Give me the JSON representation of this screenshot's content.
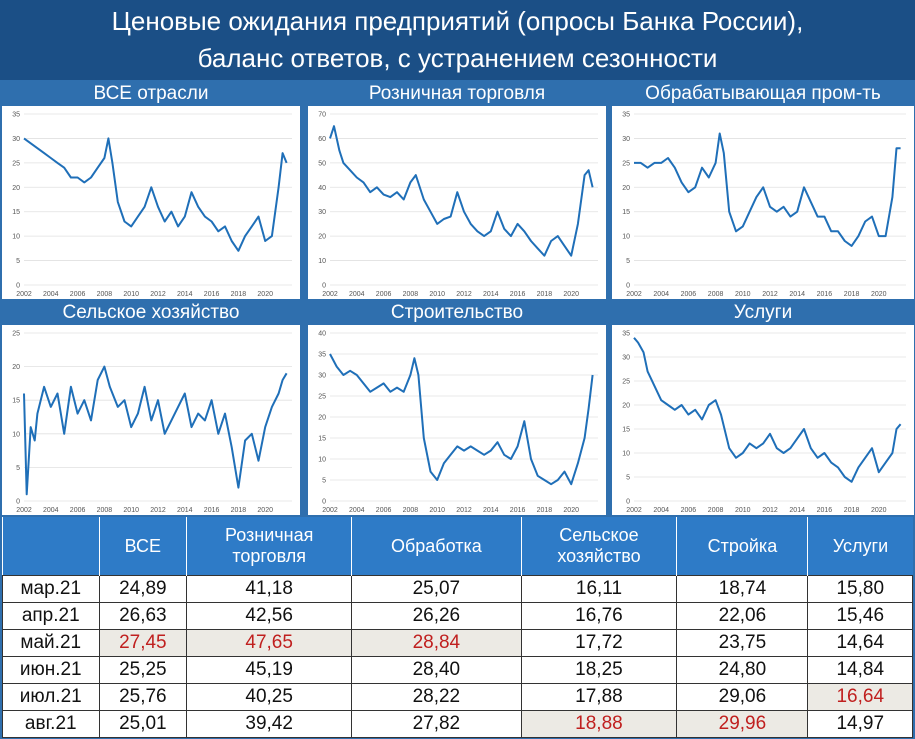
{
  "header": {
    "title_line1": "Ценовые ожидания предприятий (опросы Банка России),",
    "title_line2": "баланс ответов, с устранением сезонности"
  },
  "colors": {
    "line": "#1f6fb8",
    "highlight_text": "#c0201f",
    "highlight_bg": "#eceae4",
    "header_bg": "#2e7bc7"
  },
  "chart_data": [
    {
      "type": "line",
      "title": "ВСЕ отрасли",
      "ylim": [
        0,
        35
      ],
      "yticks": [
        0,
        5,
        10,
        15,
        20,
        25,
        30,
        35
      ],
      "xlim": [
        2002,
        2022
      ],
      "xticks": [
        2002,
        2004,
        2006,
        2008,
        2010,
        2012,
        2014,
        2016,
        2018,
        2020
      ],
      "x": [
        2002,
        2002.5,
        2003,
        2003.5,
        2004,
        2004.5,
        2005,
        2005.5,
        2006,
        2006.5,
        2007,
        2007.5,
        2008,
        2008.3,
        2008.6,
        2009,
        2009.5,
        2010,
        2010.5,
        2011,
        2011.5,
        2012,
        2012.5,
        2013,
        2013.5,
        2014,
        2014.5,
        2015,
        2015.5,
        2016,
        2016.5,
        2017,
        2017.5,
        2018,
        2018.5,
        2019,
        2019.5,
        2020,
        2020.5,
        2021,
        2021.3,
        2021.6
      ],
      "y": [
        30,
        29,
        28,
        27,
        26,
        25,
        24,
        22,
        22,
        21,
        22,
        24,
        26,
        30,
        25,
        17,
        13,
        12,
        14,
        16,
        20,
        16,
        13,
        15,
        12,
        14,
        19,
        16,
        14,
        13,
        11,
        12,
        9,
        7,
        10,
        12,
        14,
        9,
        10,
        20,
        27,
        25
      ]
    },
    {
      "type": "line",
      "title": "Розничная торговля",
      "ylim": [
        0,
        70
      ],
      "yticks": [
        0,
        10,
        20,
        30,
        40,
        50,
        60,
        70
      ],
      "xlim": [
        2002,
        2022
      ],
      "xticks": [
        2002,
        2004,
        2006,
        2008,
        2010,
        2012,
        2014,
        2016,
        2018,
        2020
      ],
      "x": [
        2002,
        2002.3,
        2002.7,
        2003,
        2003.5,
        2004,
        2004.5,
        2005,
        2005.5,
        2006,
        2006.5,
        2007,
        2007.5,
        2008,
        2008.4,
        2009,
        2009.5,
        2010,
        2010.5,
        2011,
        2011.5,
        2012,
        2012.5,
        2013,
        2013.5,
        2014,
        2014.5,
        2015,
        2015.5,
        2016,
        2016.5,
        2017,
        2017.5,
        2018,
        2018.5,
        2019,
        2019.5,
        2020,
        2020.5,
        2021,
        2021.3,
        2021.6
      ],
      "y": [
        60,
        65,
        55,
        50,
        47,
        44,
        42,
        38,
        40,
        37,
        36,
        38,
        35,
        42,
        45,
        35,
        30,
        25,
        27,
        28,
        38,
        30,
        25,
        22,
        20,
        22,
        30,
        23,
        20,
        25,
        22,
        18,
        15,
        12,
        18,
        20,
        16,
        12,
        25,
        45,
        47,
        40
      ]
    },
    {
      "type": "line",
      "title": "Обрабатывающая пром-ть",
      "ylim": [
        0,
        35
      ],
      "yticks": [
        0,
        5,
        10,
        15,
        20,
        25,
        30,
        35
      ],
      "xlim": [
        2002,
        2022
      ],
      "xticks": [
        2002,
        2004,
        2006,
        2008,
        2010,
        2012,
        2014,
        2016,
        2018,
        2020
      ],
      "x": [
        2002,
        2002.5,
        2003,
        2003.5,
        2004,
        2004.5,
        2005,
        2005.5,
        2006,
        2006.5,
        2007,
        2007.5,
        2008,
        2008.3,
        2008.6,
        2009,
        2009.5,
        2010,
        2010.5,
        2011,
        2011.5,
        2012,
        2012.5,
        2013,
        2013.5,
        2014,
        2014.5,
        2015,
        2015.5,
        2016,
        2016.5,
        2017,
        2017.5,
        2018,
        2018.5,
        2019,
        2019.5,
        2020,
        2020.5,
        2021,
        2021.3,
        2021.6
      ],
      "y": [
        25,
        25,
        24,
        25,
        25,
        26,
        24,
        21,
        19,
        20,
        24,
        22,
        25,
        31,
        27,
        15,
        11,
        12,
        15,
        18,
        20,
        16,
        15,
        16,
        14,
        15,
        20,
        17,
        14,
        14,
        11,
        11,
        9,
        8,
        10,
        13,
        14,
        10,
        10,
        18,
        28,
        28
      ]
    },
    {
      "type": "line",
      "title": "Сельское хозяйство",
      "ylim": [
        0,
        25
      ],
      "yticks": [
        0,
        5,
        10,
        15,
        20,
        25
      ],
      "xlim": [
        2002,
        2022
      ],
      "xticks": [
        2002,
        2004,
        2006,
        2008,
        2010,
        2012,
        2014,
        2016,
        2018,
        2020
      ],
      "x": [
        2002,
        2002.2,
        2002.5,
        2002.8,
        2003,
        2003.5,
        2004,
        2004.5,
        2005,
        2005.5,
        2006,
        2006.5,
        2007,
        2007.5,
        2008,
        2008.4,
        2009,
        2009.5,
        2010,
        2010.5,
        2011,
        2011.5,
        2012,
        2012.5,
        2013,
        2013.5,
        2014,
        2014.5,
        2015,
        2015.5,
        2016,
        2016.5,
        2017,
        2017.5,
        2018,
        2018.5,
        2019,
        2019.5,
        2020,
        2020.5,
        2021,
        2021.3,
        2021.6
      ],
      "y": [
        16,
        1,
        11,
        9,
        13,
        17,
        14,
        16,
        10,
        17,
        13,
        15,
        12,
        18,
        20,
        17,
        14,
        15,
        11,
        13,
        17,
        12,
        15,
        10,
        12,
        14,
        16,
        11,
        13,
        12,
        15,
        10,
        13,
        8,
        2,
        9,
        10,
        6,
        11,
        14,
        16,
        18,
        19
      ]
    },
    {
      "type": "line",
      "title": "Строительство",
      "ylim": [
        0,
        40
      ],
      "yticks": [
        0,
        5,
        10,
        15,
        20,
        25,
        30,
        35,
        40
      ],
      "xlim": [
        2002,
        2022
      ],
      "xticks": [
        2002,
        2004,
        2006,
        2008,
        2010,
        2012,
        2014,
        2016,
        2018,
        2020
      ],
      "x": [
        2002,
        2002.5,
        2003,
        2003.5,
        2004,
        2004.5,
        2005,
        2005.5,
        2006,
        2006.5,
        2007,
        2007.5,
        2008,
        2008.3,
        2008.6,
        2009,
        2009.5,
        2010,
        2010.5,
        2011,
        2011.5,
        2012,
        2012.5,
        2013,
        2013.5,
        2014,
        2014.5,
        2015,
        2015.5,
        2016,
        2016.5,
        2017,
        2017.5,
        2018,
        2018.5,
        2019,
        2019.5,
        2020,
        2020.5,
        2021,
        2021.3,
        2021.6
      ],
      "y": [
        35,
        32,
        30,
        31,
        30,
        28,
        26,
        27,
        28,
        26,
        27,
        26,
        30,
        34,
        30,
        15,
        7,
        5,
        9,
        11,
        13,
        12,
        13,
        12,
        11,
        12,
        14,
        11,
        10,
        13,
        19,
        10,
        6,
        5,
        4,
        5,
        7,
        4,
        9,
        15,
        22,
        30
      ]
    },
    {
      "type": "line",
      "title": "Услуги",
      "ylim": [
        0,
        35
      ],
      "yticks": [
        0,
        5,
        10,
        15,
        20,
        25,
        30,
        35
      ],
      "xlim": [
        2002,
        2022
      ],
      "xticks": [
        2002,
        2004,
        2006,
        2008,
        2010,
        2012,
        2014,
        2016,
        2018,
        2020
      ],
      "x": [
        2002,
        2002.3,
        2002.7,
        2003,
        2003.5,
        2004,
        2004.5,
        2005,
        2005.5,
        2006,
        2006.5,
        2007,
        2007.5,
        2008,
        2008.4,
        2009,
        2009.5,
        2010,
        2010.5,
        2011,
        2011.5,
        2012,
        2012.5,
        2013,
        2013.5,
        2014,
        2014.5,
        2015,
        2015.5,
        2016,
        2016.5,
        2017,
        2017.5,
        2018,
        2018.5,
        2019,
        2019.5,
        2020,
        2020.5,
        2021,
        2021.3,
        2021.6
      ],
      "y": [
        34,
        33,
        31,
        27,
        24,
        21,
        20,
        19,
        20,
        18,
        19,
        17,
        20,
        21,
        18,
        11,
        9,
        10,
        12,
        11,
        12,
        14,
        11,
        10,
        11,
        13,
        15,
        11,
        9,
        10,
        8,
        7,
        5,
        4,
        7,
        9,
        11,
        6,
        8,
        10,
        15,
        16
      ]
    }
  ],
  "table": {
    "headers": [
      {
        "l1": "ВСЕ",
        "l2": ""
      },
      {
        "l1": "Розничная",
        "l2": "торговля"
      },
      {
        "l1": "Обработка",
        "l2": ""
      },
      {
        "l1": "Сельское",
        "l2": "хозяйство"
      },
      {
        "l1": "Стройка",
        "l2": ""
      },
      {
        "l1": "Услуги",
        "l2": ""
      }
    ],
    "rows": [
      {
        "label": "мар.21",
        "values": [
          "24,89",
          "41,18",
          "25,07",
          "16,11",
          "18,74",
          "15,80"
        ],
        "highlight": [
          false,
          false,
          false,
          false,
          false,
          false
        ]
      },
      {
        "label": "апр.21",
        "values": [
          "26,63",
          "42,56",
          "26,26",
          "16,76",
          "22,06",
          "15,46"
        ],
        "highlight": [
          false,
          false,
          false,
          false,
          false,
          false
        ]
      },
      {
        "label": "май.21",
        "values": [
          "27,45",
          "47,65",
          "28,84",
          "17,72",
          "23,75",
          "14,64"
        ],
        "highlight": [
          true,
          true,
          true,
          false,
          false,
          false
        ]
      },
      {
        "label": "июн.21",
        "values": [
          "25,25",
          "45,19",
          "28,40",
          "18,25",
          "24,80",
          "14,84"
        ],
        "highlight": [
          false,
          false,
          false,
          false,
          false,
          false
        ]
      },
      {
        "label": "июл.21",
        "values": [
          "25,76",
          "40,25",
          "28,22",
          "17,88",
          "29,06",
          "16,64"
        ],
        "highlight": [
          false,
          false,
          false,
          false,
          false,
          true
        ]
      },
      {
        "label": "авг.21",
        "values": [
          "25,01",
          "39,42",
          "27,82",
          "18,88",
          "29,96",
          "14,97"
        ],
        "highlight": [
          false,
          false,
          false,
          true,
          true,
          false
        ]
      }
    ]
  }
}
